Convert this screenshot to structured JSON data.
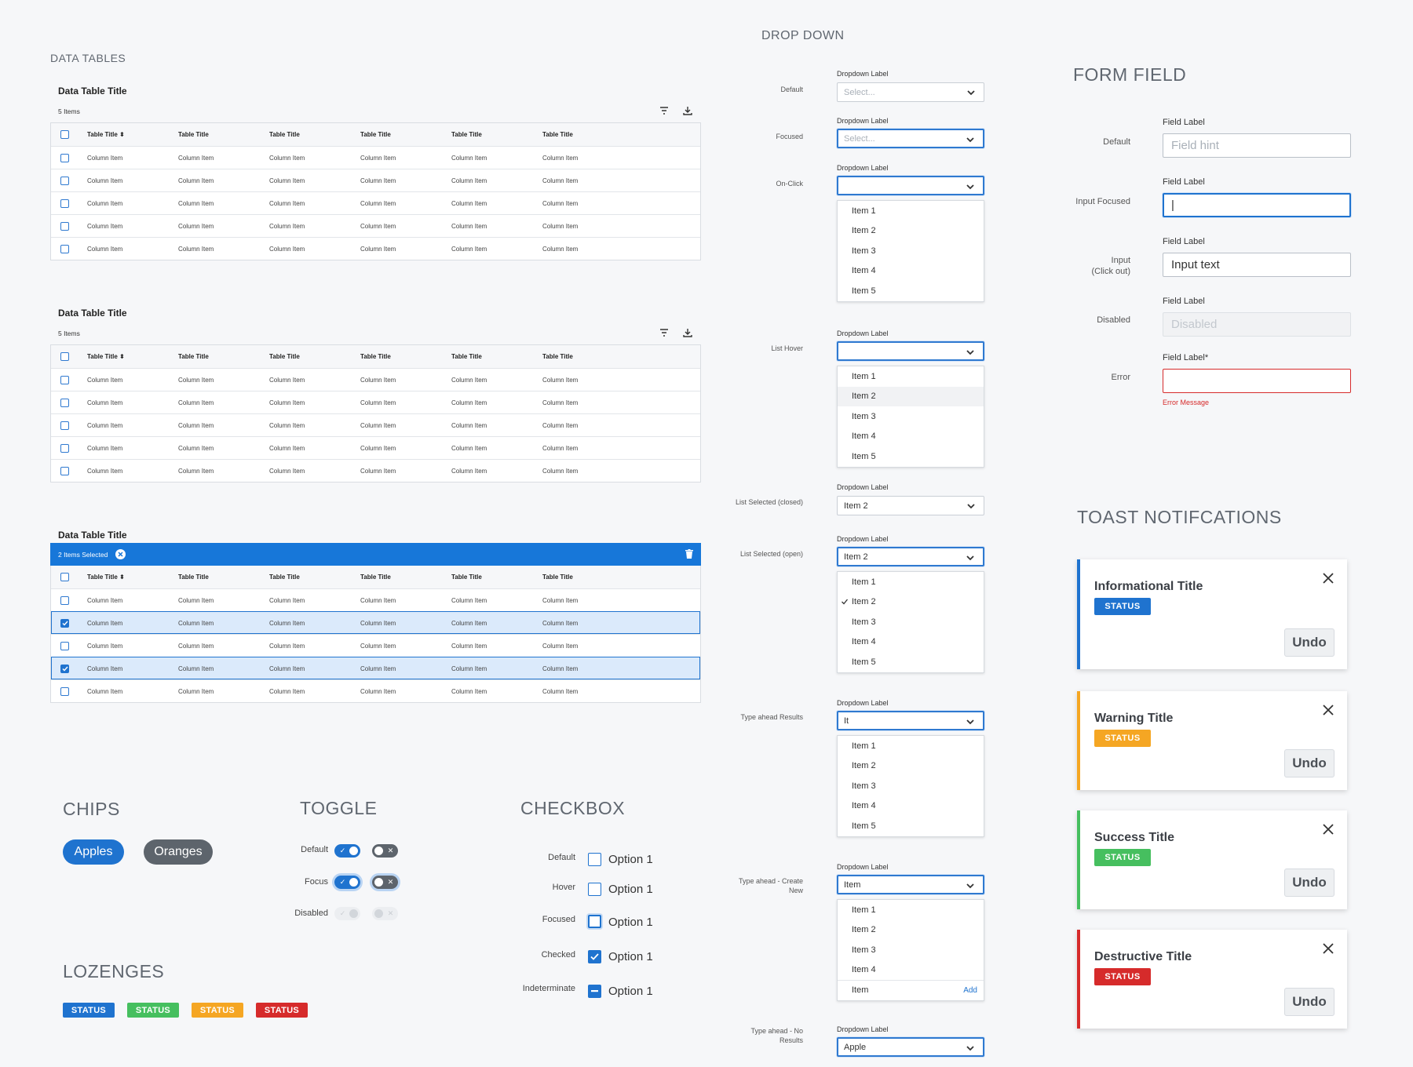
{
  "colors": {
    "primary": "#1f73cf",
    "success": "#46bf5f",
    "warning": "#f5a623",
    "danger": "#d62b2b",
    "neutral": "#5d646c"
  },
  "data_tables": {
    "section_title": "DATA TABLES",
    "tables": [
      {
        "title": "Data Table Title",
        "count": "5 Items"
      },
      {
        "title": "Data Table Title",
        "count": "5 Items"
      },
      {
        "title": "Data Table Title",
        "selected_text": "2 Items Selected"
      }
    ],
    "sort_header": "Table Title ⬍",
    "headers": [
      "Table Title",
      "Table Title",
      "Table Title",
      "Table Title",
      "Table Title",
      "Table Title"
    ],
    "cell": "Column Item",
    "icons": [
      "filter-icon",
      "download-icon",
      "clear-selection-icon",
      "trash-icon",
      "sort-icon"
    ]
  },
  "dropdown": {
    "section_title": "DROP DOWN",
    "label": "Dropdown Label",
    "states": {
      "default": "Default",
      "focused": "Focused",
      "on_click": "On-Click",
      "list_hover": "List Hover",
      "list_selected_closed": "List Selected (closed)",
      "list_selected_open": "List Selected (open)",
      "type_ahead_results": "Type ahead Results",
      "type_ahead_create": "Type ahead - Create New",
      "type_ahead_none": "Type ahead - No Results"
    },
    "placeholder": "Select...",
    "items": [
      "Item 1",
      "Item 2",
      "Item 3",
      "Item 4",
      "Item 5"
    ],
    "selected_value": "Item 2",
    "typed_results": "It",
    "typed_create": "Item",
    "create_item": "Item",
    "add_label": "Add",
    "typed_none": "Apple"
  },
  "form_field": {
    "section_title": "FORM FIELD",
    "states": {
      "default": "Default",
      "focused": "Input Focused",
      "clickout": "Input\n(Click out)",
      "disabled": "Disabled",
      "error": "Error"
    },
    "label": "Field Label",
    "label_required": "Field Label*",
    "hint": "Field hint",
    "cursor": "|",
    "input_text": "Input text",
    "disabled_text": "Disabled",
    "error_message": "Error Message"
  },
  "toasts": {
    "section_title": "TOAST NOTIFCATIONS",
    "items": [
      {
        "title": "Informational Title",
        "status": "STATUS",
        "action": "Undo",
        "color": "#1f73cf"
      },
      {
        "title": "Warning Title",
        "status": "STATUS",
        "action": "Undo",
        "color": "#f5a623"
      },
      {
        "title": "Success Title",
        "status": "STATUS",
        "action": "Undo",
        "color": "#46bf5f"
      },
      {
        "title": "Destructive Title",
        "status": "STATUS",
        "action": "Undo",
        "color": "#d62b2b"
      }
    ]
  },
  "chips": {
    "section_title": "CHIPS",
    "items": [
      "Apples",
      "Oranges"
    ]
  },
  "toggle": {
    "section_title": "TOGGLE",
    "states": [
      "Default",
      "Focus",
      "Disabled"
    ]
  },
  "checkbox": {
    "section_title": "CHECKBOX",
    "states": [
      "Default",
      "Hover",
      "Focused",
      "Checked",
      "Indeterminate"
    ],
    "option_label": "Option 1"
  },
  "lozenges": {
    "section_title": "LOZENGES",
    "items": [
      "STATUS",
      "STATUS",
      "STATUS",
      "STATUS"
    ]
  }
}
